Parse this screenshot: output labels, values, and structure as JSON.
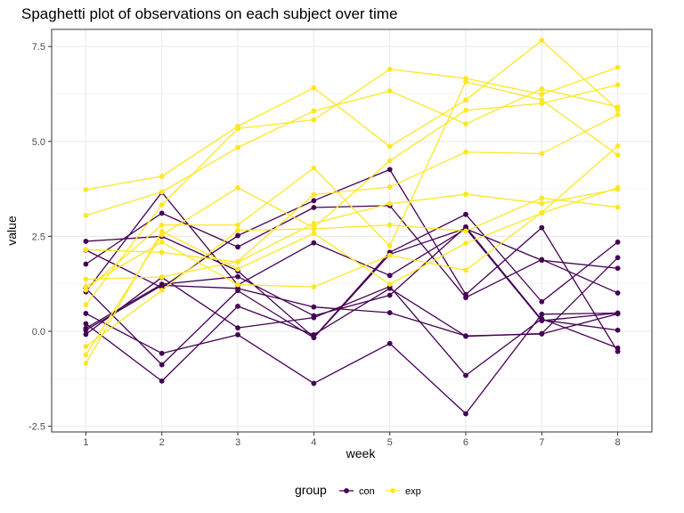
{
  "chart_data": {
    "type": "line",
    "title": "Spaghetti plot of observations on each subject over time",
    "xlabel": "week",
    "ylabel": "value",
    "x": [
      1,
      2,
      3,
      4,
      5,
      6,
      7,
      8
    ],
    "xticks": [
      "1",
      "2",
      "3",
      "4",
      "5",
      "6",
      "7",
      "8"
    ],
    "xlim": [
      0.55,
      8.45
    ],
    "yticks": [
      -2.5,
      0,
      2.5,
      5,
      7.5
    ],
    "ytick_labels": [
      "-2.5",
      "0.0",
      "2.5",
      "5.0",
      "7.5"
    ],
    "ylim": [
      -2.65,
      7.95
    ],
    "grid": true,
    "legend": {
      "title": "group",
      "position": "bottom",
      "entries": [
        {
          "label": "con",
          "color": "#440154"
        },
        {
          "label": "exp",
          "color": "#FDE725"
        }
      ]
    },
    "series": [
      {
        "name": "con",
        "group": "con",
        "values": [
          0.2,
          -1.31,
          0.66,
          -0.09,
          1.13,
          -0.13,
          -0.06,
          1.94
        ]
      },
      {
        "name": "con",
        "group": "con",
        "values": [
          1.13,
          -0.88,
          1.07,
          -0.17,
          2.03,
          2.71,
          0.28,
          0.48
        ]
      },
      {
        "name": "con",
        "group": "con",
        "values": [
          1.77,
          3.11,
          2.22,
          3.26,
          3.31,
          0.89,
          1.89,
          1.01
        ]
      },
      {
        "name": "con",
        "group": "con",
        "values": [
          1.04,
          3.66,
          1.22,
          2.33,
          1.47,
          2.7,
          1.87,
          1.66
        ]
      },
      {
        "name": "con",
        "group": "con",
        "values": [
          0.47,
          -0.58,
          -0.09,
          -1.37,
          -0.32,
          -2.17,
          0.45,
          0.48
        ]
      },
      {
        "name": "con",
        "group": "con",
        "values": [
          2.37,
          2.5,
          1.59,
          -0.16,
          2.08,
          3.08,
          0.78,
          2.35
        ]
      },
      {
        "name": "con",
        "group": "con",
        "values": [
          0.03,
          1.21,
          1.13,
          0.64,
          0.49,
          -0.12,
          -0.07,
          0.46
        ]
      },
      {
        "name": "con",
        "group": "con",
        "values": [
          -0.08,
          1.42,
          0.09,
          0.36,
          1.18,
          -1.16,
          0.33,
          -0.44
        ]
      },
      {
        "name": "con",
        "group": "con",
        "values": [
          0.08,
          1.24,
          1.44,
          0.41,
          0.95,
          2.75,
          0.3,
          0.03
        ]
      },
      {
        "name": "con",
        "group": "con",
        "values": [
          2.14,
          1.15,
          2.52,
          3.44,
          4.26,
          0.97,
          2.73,
          -0.53
        ]
      },
      {
        "name": "exp",
        "group": "exp",
        "values": [
          3.05,
          3.67,
          4.84,
          5.8,
          6.33,
          5.46,
          6.38,
          5.91
        ]
      },
      {
        "name": "exp",
        "group": "exp",
        "values": [
          -0.84,
          2.63,
          1.64,
          2.58,
          1.24,
          2.32,
          3.11,
          3.78
        ]
      },
      {
        "name": "exp",
        "group": "exp",
        "values": [
          2.15,
          2.08,
          1.82,
          2.84,
          3.36,
          3.61,
          3.37,
          3.74
        ]
      },
      {
        "name": "exp",
        "group": "exp",
        "values": [
          -0.62,
          2.54,
          3.78,
          2.73,
          4.49,
          5.82,
          6.0,
          6.49
        ]
      },
      {
        "name": "exp",
        "group": "exp",
        "values": [
          0.7,
          3.33,
          5.34,
          5.57,
          6.9,
          6.66,
          6.24,
          6.95
        ]
      },
      {
        "name": "exp",
        "group": "exp",
        "values": [
          3.73,
          4.08,
          5.4,
          6.41,
          4.87,
          6.09,
          7.66,
          5.83
        ]
      },
      {
        "name": "exp",
        "group": "exp",
        "values": [
          1.18,
          2.35,
          1.23,
          1.17,
          2.0,
          1.61,
          3.13,
          4.88
        ]
      },
      {
        "name": "exp",
        "group": "exp",
        "values": [
          1.37,
          1.43,
          1.84,
          3.6,
          3.8,
          4.72,
          4.68,
          5.7
        ]
      },
      {
        "name": "exp",
        "group": "exp",
        "values": [
          -0.4,
          1.08,
          2.66,
          2.7,
          2.8,
          2.64,
          3.51,
          3.27
        ]
      },
      {
        "name": "exp",
        "group": "exp",
        "values": [
          1.09,
          2.8,
          2.8,
          4.3,
          2.25,
          6.57,
          6.09,
          4.64
        ]
      }
    ]
  }
}
